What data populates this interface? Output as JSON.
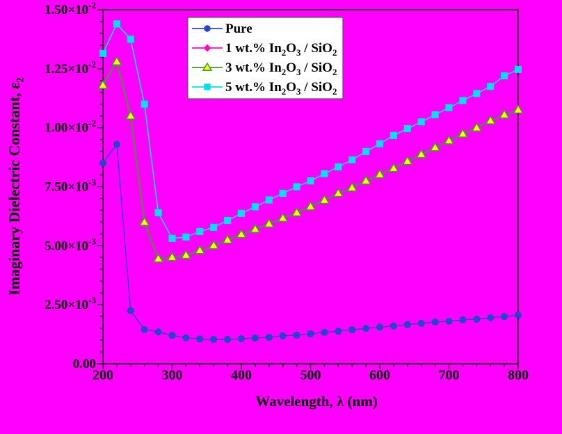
{
  "figure": {
    "background_color": "#FF00FF",
    "frame_color": "#000000",
    "legend_background": "#FFFFFF",
    "legend_border": "#555555"
  },
  "axes": {
    "x_title_parts": [
      {
        "t": "Wavelength, λ (nm)"
      }
    ],
    "y_title_parts": [
      {
        "t": "Imaginary Dielectric Constant, ε"
      },
      {
        "t": "2",
        "sub": true
      }
    ],
    "x_tick_labels": [
      "200",
      "300",
      "400",
      "500",
      "600",
      "700",
      "800"
    ],
    "y_tick_labels": [
      {
        "mantissa": "0.00",
        "exponent": null
      },
      {
        "mantissa": "2.50×10",
        "exponent": "-3"
      },
      {
        "mantissa": "5.00×10",
        "exponent": "-3"
      },
      {
        "mantissa": "7.50×10",
        "exponent": "-3"
      },
      {
        "mantissa": "1.00×10",
        "exponent": "-2"
      },
      {
        "mantissa": "1.25×10",
        "exponent": "-2"
      },
      {
        "mantissa": "1.50×10",
        "exponent": "-2"
      }
    ]
  },
  "legend": {
    "items": [
      {
        "id": "pure",
        "label_parts": [
          {
            "t": "Pure"
          }
        ],
        "line_color": "#2646C8",
        "marker": "circle",
        "marker_fill": "#2646C8",
        "marker_stroke": "#2646C8"
      },
      {
        "id": "1wt",
        "label_parts": [
          {
            "t": "1 wt.% In"
          },
          {
            "t": "2",
            "sub": true
          },
          {
            "t": "O"
          },
          {
            "t": "3",
            "sub": true
          },
          {
            "t": " / SiO"
          },
          {
            "t": "2",
            "sub": true
          }
        ],
        "line_color": "#FF00DC",
        "marker": "diamond",
        "marker_fill": "#FF00DC",
        "marker_stroke": "#FF00DC"
      },
      {
        "id": "3wt",
        "label_parts": [
          {
            "t": "3 wt.% In"
          },
          {
            "t": "2",
            "sub": true
          },
          {
            "t": "O"
          },
          {
            "t": "3",
            "sub": true
          },
          {
            "t": " / SiO"
          },
          {
            "t": "2",
            "sub": true
          }
        ],
        "line_color": "#3C9B2B",
        "marker": "triangle",
        "marker_fill": "#FFFF00",
        "marker_stroke": "#3C9B2B"
      },
      {
        "id": "5wt",
        "label_parts": [
          {
            "t": "5 wt.% In"
          },
          {
            "t": "2",
            "sub": true
          },
          {
            "t": "O"
          },
          {
            "t": "3",
            "sub": true
          },
          {
            "t": " / SiO"
          },
          {
            "t": "2",
            "sub": true
          }
        ],
        "line_color": "#00E0F0",
        "marker": "square",
        "marker_fill": "#00E0F0",
        "marker_stroke": "#00E0F0"
      }
    ]
  },
  "chart_data": {
    "type": "line",
    "title": "",
    "xlabel": "Wavelength, λ (nm)",
    "ylabel": "Imaginary Dielectric Constant, ε2",
    "xlim": [
      200,
      800
    ],
    "ylim": [
      0,
      0.015
    ],
    "x_major_ticks": [
      200,
      300,
      400,
      500,
      600,
      700,
      800
    ],
    "x_minor_step": 20,
    "y_major_ticks": [
      0,
      0.0025,
      0.005,
      0.0075,
      0.01,
      0.0125,
      0.015
    ],
    "y_minor_step": 0.0005,
    "grid": false,
    "legend_position": "top-left-inside",
    "background": "#FF00FF",
    "x": [
      200,
      220,
      240,
      260,
      280,
      300,
      320,
      340,
      360,
      380,
      400,
      420,
      440,
      460,
      480,
      500,
      520,
      540,
      560,
      580,
      600,
      620,
      640,
      660,
      680,
      700,
      720,
      740,
      760,
      780,
      800
    ],
    "series": [
      {
        "id": "pure",
        "name": "Pure",
        "line_color": "#2646C8",
        "line_width": 1.3,
        "marker": "circle",
        "marker_fill": "#2646C8",
        "marker_stroke": "#2646C8",
        "values": [
          0.0085,
          0.0093,
          0.00225,
          0.00145,
          0.00135,
          0.0012,
          0.0011,
          0.00105,
          0.00103,
          0.00103,
          0.00106,
          0.00109,
          0.00112,
          0.00118,
          0.00121,
          0.00127,
          0.00133,
          0.00138,
          0.00144,
          0.0015,
          0.00155,
          0.0016,
          0.00166,
          0.00171,
          0.00177,
          0.0018,
          0.00186,
          0.00189,
          0.00195,
          0.002,
          0.00206
        ]
      },
      {
        "id": "1wt",
        "name": "1 wt.% In2O3 / SiO2",
        "line_color": "#FF00DC",
        "line_width": 1.5,
        "marker": "diamond",
        "marker_fill": "#FF00DC",
        "marker_stroke": "#FF00DC",
        "values": null,
        "note": "curve not distinguishable from magenta background in source image"
      },
      {
        "id": "3wt",
        "name": "3 wt.% In2O3 / SiO2",
        "line_color": "#3C9B2B",
        "line_width": 2,
        "marker": "triangle",
        "marker_fill": "#FFFF00",
        "marker_stroke": "#3C9B2B",
        "values": [
          0.0118,
          0.0128,
          0.0105,
          0.006,
          0.00445,
          0.00451,
          0.0046,
          0.0048,
          0.00501,
          0.00525,
          0.00548,
          0.0057,
          0.00593,
          0.00617,
          0.0064,
          0.00666,
          0.00693,
          0.00722,
          0.00746,
          0.00775,
          0.00802,
          0.00828,
          0.00858,
          0.00887,
          0.00916,
          0.00945,
          0.00974,
          0.01,
          0.0103,
          0.01055,
          0.01076
        ]
      },
      {
        "id": "5wt",
        "name": "5 wt.% In2O3 / SiO2",
        "line_color": "#00E0F0",
        "line_width": 1.6,
        "marker": "square",
        "marker_fill": "#00E0F0",
        "marker_stroke": "#00E0F0",
        "values": [
          0.01315,
          0.0144,
          0.01375,
          0.011,
          0.0064,
          0.00531,
          0.00537,
          0.0056,
          0.00578,
          0.00607,
          0.00637,
          0.00665,
          0.00694,
          0.00722,
          0.0075,
          0.00775,
          0.00805,
          0.00834,
          0.00864,
          0.00899,
          0.00932,
          0.00967,
          0.00996,
          0.01025,
          0.01055,
          0.01085,
          0.01115,
          0.01145,
          0.01175,
          0.0122,
          0.01247
        ]
      }
    ]
  }
}
